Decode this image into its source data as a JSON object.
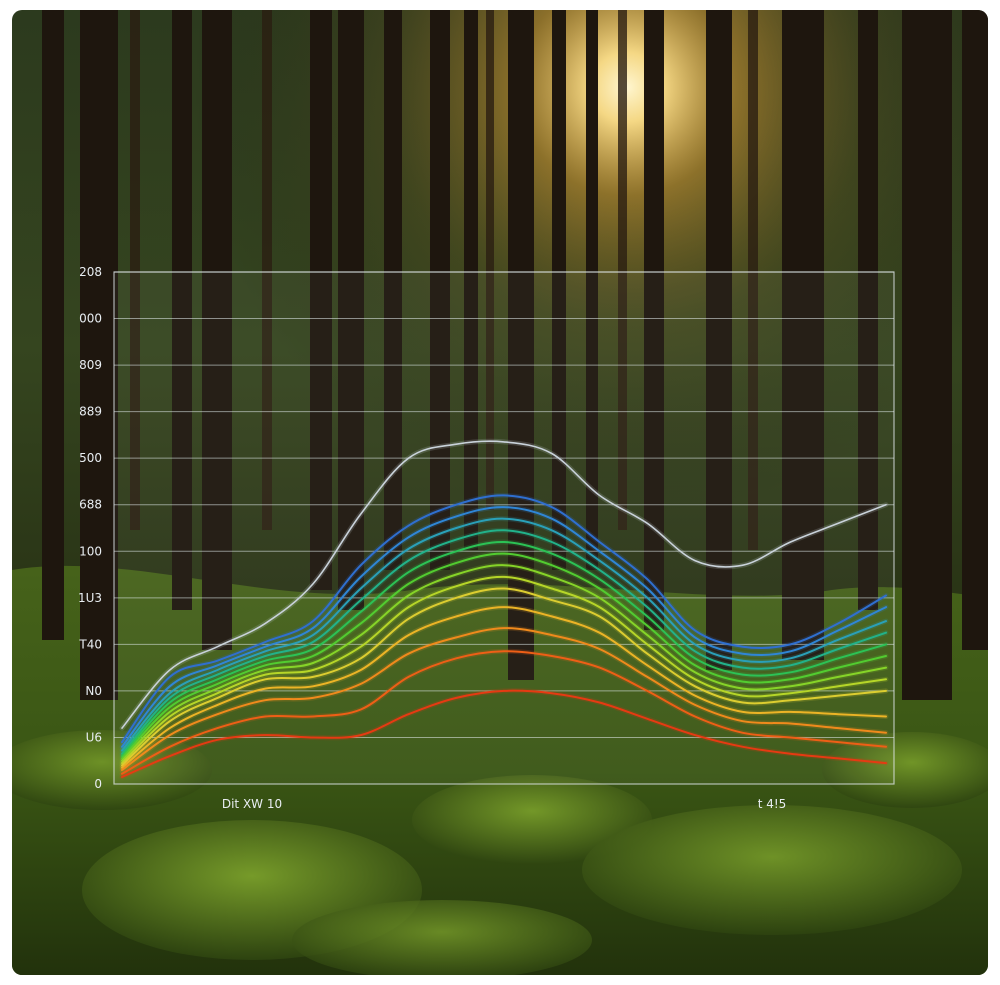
{
  "chart_data": {
    "type": "line",
    "title": "",
    "xlabel": "",
    "ylabel": "",
    "y_tick_labels": [
      "0",
      "U6",
      "N0",
      "T40",
      "1U3",
      "100",
      "688",
      "500",
      "889",
      "809",
      "000",
      "208"
    ],
    "x_tick_labels": [
      "Dit XW 10",
      "t 4!5"
    ],
    "grid": true,
    "legend": "none",
    "x": [
      0,
      1,
      2,
      3,
      4,
      5,
      6,
      7,
      8,
      9,
      10,
      11,
      12,
      13,
      14,
      15,
      16
    ],
    "series": [
      {
        "color": "#c9d2da",
        "values": [
          1.2,
          2.45,
          2.95,
          3.45,
          4.3,
          5.8,
          7.0,
          7.3,
          7.35,
          7.1,
          6.2,
          5.6,
          4.8,
          4.7,
          5.2,
          5.6,
          6.0
        ]
      },
      {
        "color": "#2f6fd0",
        "values": [
          0.9,
          2.3,
          2.65,
          3.05,
          3.5,
          4.7,
          5.55,
          6.0,
          6.2,
          5.95,
          5.2,
          4.4,
          3.3,
          2.95,
          3.0,
          3.45,
          4.05
        ]
      },
      {
        "color": "#2f86d6",
        "values": [
          0.8,
          2.1,
          2.55,
          2.95,
          3.35,
          4.45,
          5.3,
          5.75,
          5.95,
          5.7,
          5.0,
          4.2,
          3.15,
          2.8,
          2.85,
          3.3,
          3.8
        ]
      },
      {
        "color": "#2aa0b8",
        "values": [
          0.72,
          1.95,
          2.45,
          2.85,
          3.2,
          4.2,
          5.05,
          5.5,
          5.7,
          5.45,
          4.8,
          4.0,
          3.0,
          2.65,
          2.7,
          3.1,
          3.5
        ]
      },
      {
        "color": "#22b28a",
        "values": [
          0.65,
          1.85,
          2.35,
          2.75,
          3.05,
          3.95,
          4.8,
          5.25,
          5.45,
          5.2,
          4.6,
          3.8,
          2.85,
          2.5,
          2.55,
          2.9,
          3.25
        ]
      },
      {
        "color": "#2cc255",
        "values": [
          0.6,
          1.75,
          2.25,
          2.65,
          2.9,
          3.7,
          4.55,
          5.0,
          5.2,
          4.95,
          4.4,
          3.6,
          2.7,
          2.35,
          2.4,
          2.7,
          3.0
        ]
      },
      {
        "color": "#52cc30",
        "values": [
          0.55,
          1.65,
          2.15,
          2.55,
          2.75,
          3.45,
          4.3,
          4.75,
          4.95,
          4.7,
          4.2,
          3.4,
          2.55,
          2.2,
          2.25,
          2.5,
          2.75
        ]
      },
      {
        "color": "#86d428",
        "values": [
          0.5,
          1.55,
          2.05,
          2.45,
          2.6,
          3.2,
          4.05,
          4.5,
          4.7,
          4.45,
          4.0,
          3.2,
          2.4,
          2.05,
          2.1,
          2.3,
          2.5
        ]
      },
      {
        "color": "#b6d628",
        "values": [
          0.45,
          1.45,
          1.95,
          2.35,
          2.45,
          2.95,
          3.8,
          4.25,
          4.45,
          4.2,
          3.8,
          3.0,
          2.25,
          1.9,
          1.95,
          2.1,
          2.25
        ]
      },
      {
        "color": "#dccd30",
        "values": [
          0.4,
          1.35,
          1.85,
          2.25,
          2.3,
          2.7,
          3.55,
          4.0,
          4.2,
          3.95,
          3.6,
          2.8,
          2.1,
          1.75,
          1.8,
          1.9,
          2.0
        ]
      },
      {
        "color": "#ecb426",
        "values": [
          0.35,
          1.2,
          1.7,
          2.05,
          2.1,
          2.45,
          3.2,
          3.6,
          3.8,
          3.6,
          3.25,
          2.55,
          1.9,
          1.55,
          1.55,
          1.5,
          1.45
        ]
      },
      {
        "color": "#f08a1c",
        "values": [
          0.3,
          1.05,
          1.5,
          1.8,
          1.85,
          2.15,
          2.8,
          3.15,
          3.35,
          3.2,
          2.9,
          2.3,
          1.7,
          1.35,
          1.3,
          1.2,
          1.1
        ]
      },
      {
        "color": "#ee5f16",
        "values": [
          0.22,
          0.8,
          1.2,
          1.45,
          1.45,
          1.6,
          2.3,
          2.7,
          2.85,
          2.75,
          2.5,
          2.0,
          1.45,
          1.1,
          1.0,
          0.9,
          0.8
        ]
      },
      {
        "color": "#e63a12",
        "values": [
          0.15,
          0.6,
          0.95,
          1.05,
          1.0,
          1.05,
          1.5,
          1.85,
          2.0,
          1.95,
          1.75,
          1.4,
          1.05,
          0.8,
          0.65,
          0.55,
          0.45
        ]
      }
    ],
    "ylim": [
      0,
      11
    ],
    "xlim": [
      0,
      16
    ]
  }
}
